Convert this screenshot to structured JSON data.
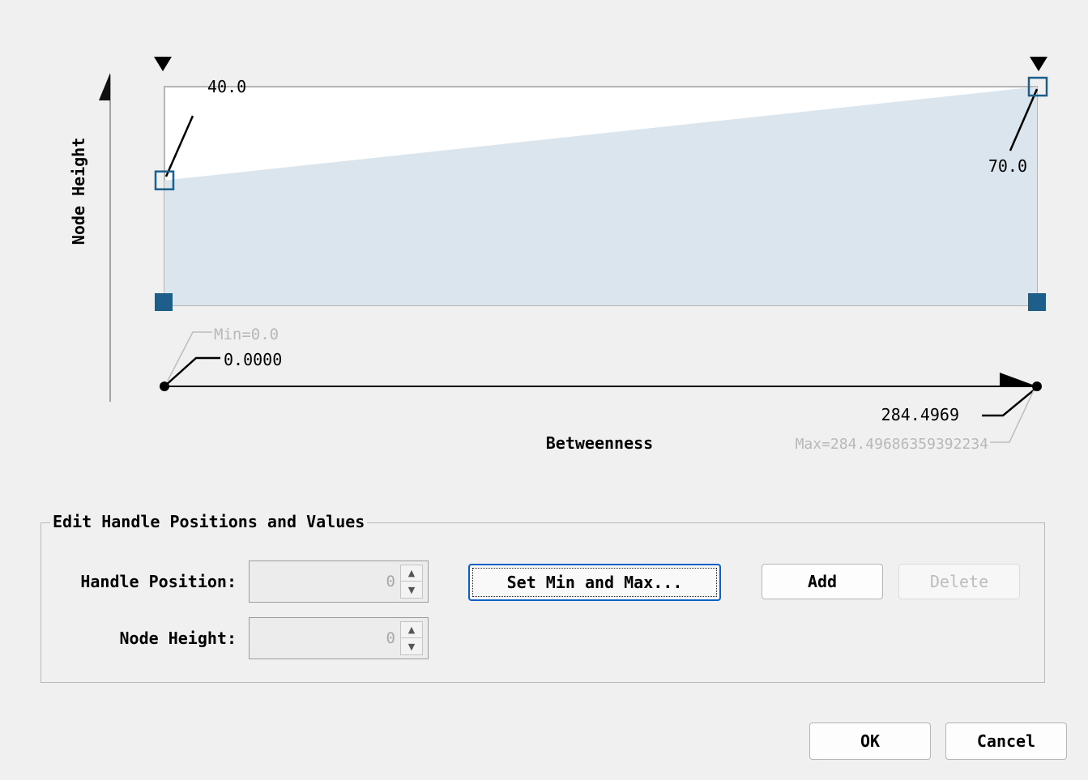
{
  "chart_data": {
    "type": "area",
    "xlabel": "Betweenness",
    "ylabel": "Node Height",
    "xlim": [
      0,
      284.4969
    ],
    "handles": [
      {
        "x": 0,
        "y": 40.0,
        "label": "40.0"
      },
      {
        "x": 284.4969,
        "y": 70.0,
        "label": "70.0"
      }
    ],
    "x_min_label": "0.0000",
    "x_max_label": "284.4969",
    "min_annotation": "Min=0.0",
    "max_annotation": "Max=284.49686359392234"
  },
  "colors": {
    "fill": "#dae5ed",
    "handle": "#1d5f8a",
    "background": "#f0f0f0"
  },
  "edit_group": {
    "legend": "Edit Handle Positions and Values",
    "handle_position_label": "Handle Position:",
    "handle_position_value": "0",
    "node_height_label": "Node Height:",
    "node_height_value": "0",
    "set_min_max_label": "Set Min and Max...",
    "add_label": "Add",
    "delete_label": "Delete"
  },
  "footer": {
    "ok_label": "OK",
    "cancel_label": "Cancel"
  },
  "icons": {
    "spin_up": "▲",
    "spin_down": "▼"
  }
}
